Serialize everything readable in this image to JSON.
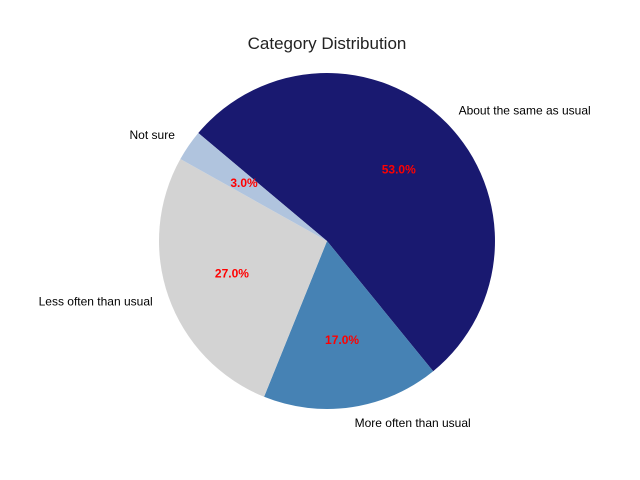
{
  "chart_data": {
    "type": "pie",
    "title": "Category Distribution",
    "labels": [
      "About the same as usual",
      "More often than usual",
      "Less often than usual",
      "Not sure"
    ],
    "values": [
      53.0,
      17.0,
      27.0,
      3.0
    ],
    "percent_labels": [
      "53.0%",
      "17.0%",
      "27.0%",
      "3.0%"
    ],
    "colors": [
      "#191970",
      "#4682b4",
      "#d3d3d3",
      "#b0c4de"
    ],
    "pct_label_color": "#ff0000",
    "start_angle_deg": 140,
    "direction": "clockwise",
    "legend": "none"
  }
}
